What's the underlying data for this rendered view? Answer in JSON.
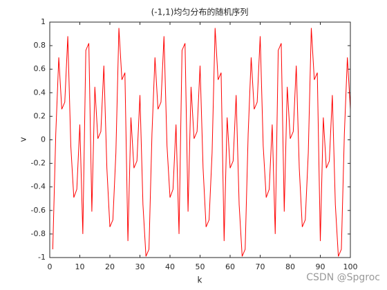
{
  "chart_data": {
    "type": "line",
    "title": "(-1,1)均匀分布的随机序列",
    "x_label": "k",
    "y_label": "v",
    "x": [
      1,
      2,
      3,
      4,
      5,
      6,
      7,
      8,
      9,
      10,
      11,
      12,
      13,
      14,
      15,
      16,
      17,
      18,
      19,
      20,
      21,
      22,
      23,
      24,
      25,
      26,
      27,
      28,
      29,
      30,
      31,
      32,
      33,
      34,
      35,
      36,
      37,
      38,
      39,
      40,
      41,
      42,
      43,
      44,
      45,
      46,
      47,
      48,
      49,
      50,
      51,
      52,
      53,
      54,
      55,
      56,
      57,
      58,
      59,
      60,
      61,
      62,
      63,
      64,
      65,
      66,
      67,
      68,
      69,
      70,
      71,
      72,
      73,
      74,
      75,
      76,
      77,
      78,
      79,
      80,
      81,
      82,
      83,
      84,
      85,
      86,
      87,
      88,
      89,
      90,
      91,
      92,
      93,
      94,
      95,
      96,
      97,
      98,
      99,
      100
    ],
    "series": [
      {
        "color": "#ff0000",
        "values": [
          -0.93,
          0.05,
          0.7,
          0.26,
          0.32,
          0.88,
          -0.05,
          -0.49,
          -0.42,
          0.13,
          -0.8,
          0.76,
          0.82,
          -0.61,
          0.45,
          0.01,
          0.07,
          0.63,
          -0.24,
          -0.74,
          -0.68,
          -0.11,
          0.95,
          0.51,
          0.57,
          -0.86,
          0.19,
          -0.24,
          -0.18,
          0.38,
          -0.55,
          -0.99,
          -0.93,
          0.05,
          0.7,
          0.26,
          0.32,
          0.88,
          -0.05,
          -0.49,
          -0.42,
          0.13,
          -0.8,
          0.76,
          0.82,
          -0.61,
          0.45,
          0.01,
          0.07,
          0.63,
          -0.24,
          -0.74,
          -0.68,
          -0.11,
          0.95,
          0.51,
          0.57,
          -0.86,
          0.19,
          -0.24,
          -0.18,
          0.38,
          -0.55,
          -0.99,
          -0.93,
          0.05,
          0.7,
          0.26,
          0.32,
          0.88,
          -0.05,
          -0.49,
          -0.42,
          0.13,
          -0.8,
          0.76,
          0.82,
          -0.61,
          0.45,
          0.01,
          0.07,
          0.63,
          -0.24,
          -0.74,
          -0.68,
          -0.11,
          0.95,
          0.51,
          0.57,
          -0.86,
          0.19,
          -0.24,
          -0.18,
          0.38,
          -0.55,
          -0.99,
          -0.93,
          0.05,
          0.7,
          0.26
        ]
      }
    ],
    "xlim": [
      0,
      100
    ],
    "xticks": [
      0,
      10,
      20,
      30,
      40,
      50,
      60,
      70,
      80,
      90,
      100
    ],
    "ylim": [
      -1,
      1
    ],
    "yticks": [
      -1,
      -0.8,
      -0.6,
      -0.4,
      -0.2,
      0,
      0.2,
      0.4,
      0.6,
      0.8,
      1
    ],
    "watermark": "CSDN @Spgroc"
  }
}
